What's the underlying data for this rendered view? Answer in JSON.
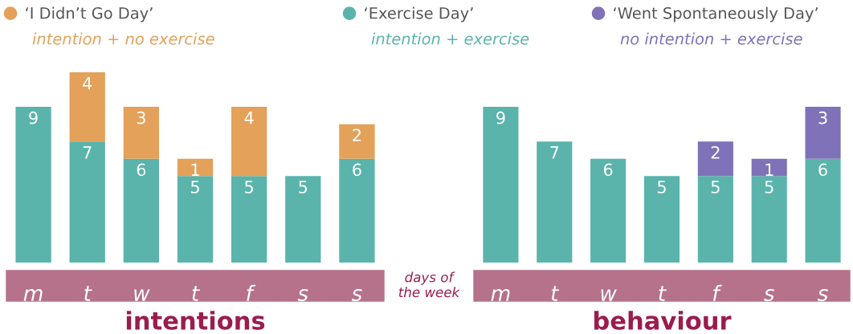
{
  "chart_data": [
    {
      "type": "bar",
      "stacked": true,
      "data_labels": true,
      "legend": "top",
      "grid": false,
      "tick_labels": "x",
      "xlabel": "intentions",
      "categories": [
        "m",
        "t",
        "w",
        "t",
        "f",
        "s",
        "s"
      ],
      "series": [
        {
          "name": "‘Exercise Day’",
          "color": "#5ab4ac",
          "values": [
            9,
            7,
            6,
            5,
            5,
            5,
            6
          ]
        },
        {
          "name": "‘I Didn’t Go Day’",
          "color": "#e3a15a",
          "values": [
            null,
            4,
            3,
            1,
            4,
            null,
            2
          ]
        }
      ],
      "annotations": [
        "intention + no exercise",
        "intention + exercise",
        "days of\nthe week"
      ]
    },
    {
      "type": "bar",
      "stacked": true,
      "data_labels": true,
      "legend": "top",
      "grid": false,
      "tick_labels": "x",
      "xlabel": "behaviour",
      "categories": [
        "m",
        "t",
        "w",
        "t",
        "f",
        "s",
        "s"
      ],
      "series": [
        {
          "color": "#5ab4ac",
          "values": [
            9,
            7,
            6,
            5,
            5,
            5,
            6
          ]
        },
        {
          "name": "‘Went Spontaneously Day’",
          "color": "#7f72b8",
          "values": [
            null,
            null,
            null,
            null,
            2,
            1,
            3
          ]
        }
      ],
      "annotations": [
        "no intention + exercise"
      ]
    }
  ]
}
